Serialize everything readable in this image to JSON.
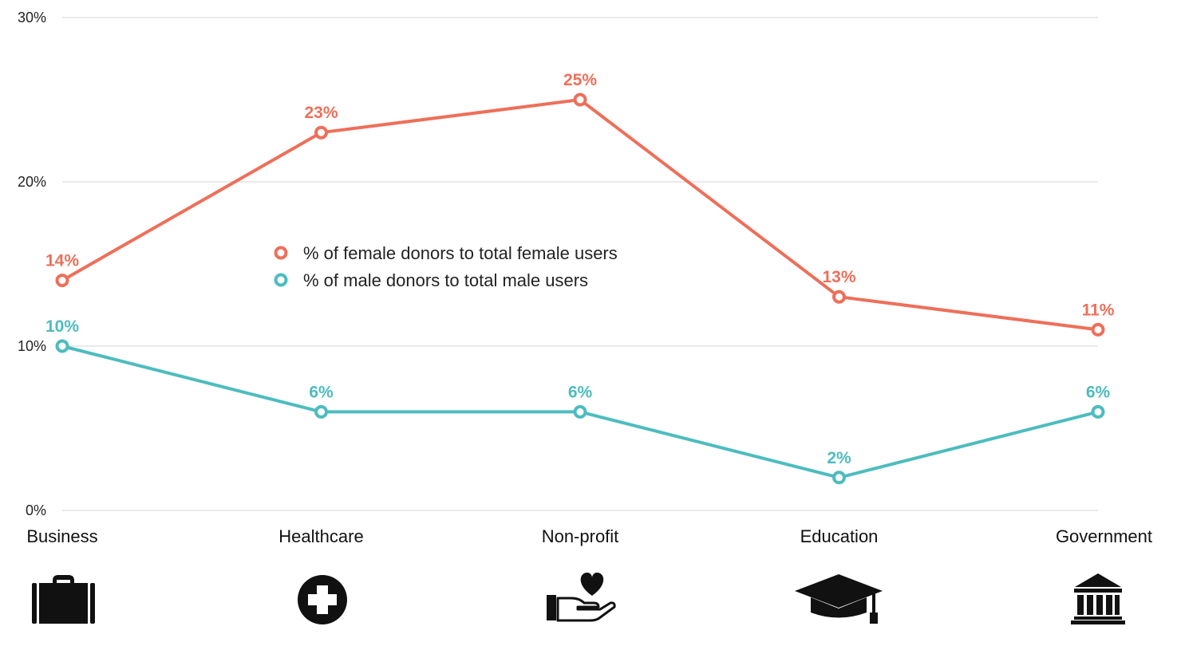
{
  "colors": {
    "female": "#ee6f5a",
    "male": "#4dbcbf",
    "grid": "#dddddd",
    "icon": "#111111"
  },
  "chart_data": {
    "type": "line",
    "categories": [
      "Business",
      "Healthcare",
      "Non-profit",
      "Education",
      "Government"
    ],
    "series": [
      {
        "name": "% of female donors to total female users",
        "key": "female",
        "values": [
          14,
          23,
          25,
          13,
          11
        ],
        "labels": [
          "14%",
          "23%",
          "25%",
          "13%",
          "11%"
        ]
      },
      {
        "name": "% of male donors to total male users",
        "key": "male",
        "values": [
          10,
          6,
          6,
          2,
          6
        ],
        "labels": [
          "10%",
          "6%",
          "6%",
          "2%",
          "6%"
        ]
      }
    ],
    "ylim": [
      0,
      30
    ],
    "yticks": [
      0,
      10,
      20,
      30
    ],
    "ytick_labels": [
      "0%",
      "10%",
      "20%",
      "30%"
    ],
    "grid": true,
    "legend_position": "center",
    "category_icons": [
      "briefcase-icon",
      "medical-cross-icon",
      "heart-hand-icon",
      "graduation-cap-icon",
      "government-building-icon"
    ]
  }
}
